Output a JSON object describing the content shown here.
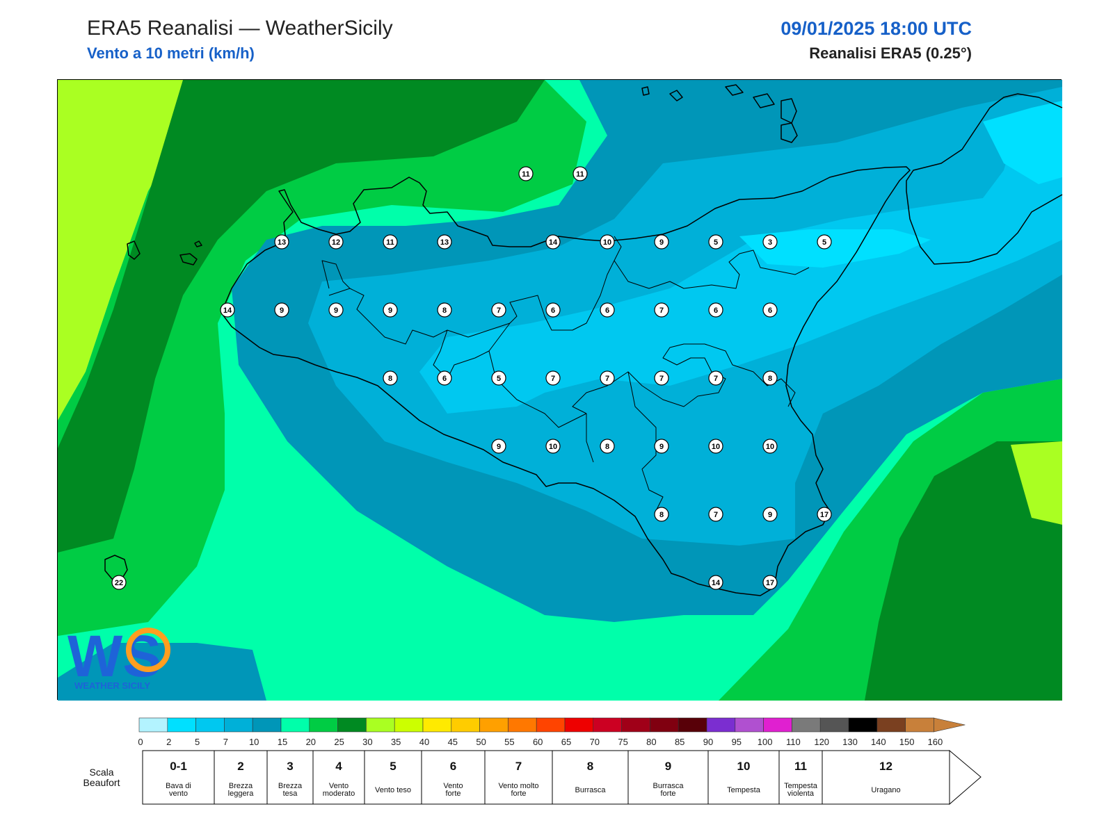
{
  "header": {
    "title": "ERA5 Reanalisi — WeatherSicily",
    "subtitle": "Vento a 10 metri (km/h)",
    "datetime": "09/01/2025 18:00 UTC",
    "source": "Reanalisi ERA5 (0.25°)"
  },
  "logo": {
    "text": "WEATHER SICILY",
    "letters": "WS"
  },
  "wind_labels": [
    {
      "value": "11",
      "lat": 38.5,
      "lon": 14.75
    },
    {
      "value": "11",
      "lat": 38.5,
      "lon": 15.25
    },
    {
      "value": "13",
      "lat": 38.0,
      "lon": 12.5
    },
    {
      "value": "12",
      "lat": 38.0,
      "lon": 13.0
    },
    {
      "value": "11",
      "lat": 38.0,
      "lon": 13.5
    },
    {
      "value": "13",
      "lat": 38.0,
      "lon": 14.0
    },
    {
      "value": "14",
      "lat": 38.0,
      "lon": 15.0
    },
    {
      "value": "10",
      "lat": 38.0,
      "lon": 15.5
    },
    {
      "value": "9",
      "lat": 38.0,
      "lon": 16.0
    },
    {
      "value": "5",
      "lat": 38.0,
      "lon": 16.5
    },
    {
      "value": "3",
      "lat": 38.0,
      "lon": 17.0
    },
    {
      "value": "5",
      "lat": 38.0,
      "lon": 17.5
    },
    {
      "value": "14",
      "lat": 37.5,
      "lon": 12.0
    },
    {
      "value": "9",
      "lat": 37.5,
      "lon": 12.5
    },
    {
      "value": "9",
      "lat": 37.5,
      "lon": 13.0
    },
    {
      "value": "9",
      "lat": 37.5,
      "lon": 13.5
    },
    {
      "value": "8",
      "lat": 37.5,
      "lon": 14.0
    },
    {
      "value": "7",
      "lat": 37.5,
      "lon": 14.5
    },
    {
      "value": "6",
      "lat": 37.5,
      "lon": 15.0
    },
    {
      "value": "6",
      "lat": 37.5,
      "lon": 15.5
    },
    {
      "value": "7",
      "lat": 37.5,
      "lon": 16.0
    },
    {
      "value": "6",
      "lat": 37.5,
      "lon": 16.5
    },
    {
      "value": "6",
      "lat": 37.5,
      "lon": 17.0
    },
    {
      "value": "8",
      "lat": 37.0,
      "lon": 13.5
    },
    {
      "value": "6",
      "lat": 37.0,
      "lon": 14.0
    },
    {
      "value": "5",
      "lat": 37.0,
      "lon": 14.5
    },
    {
      "value": "7",
      "lat": 37.0,
      "lon": 15.0
    },
    {
      "value": "7",
      "lat": 37.0,
      "lon": 15.5
    },
    {
      "value": "7",
      "lat": 37.0,
      "lon": 16.0
    },
    {
      "value": "7",
      "lat": 37.0,
      "lon": 16.5
    },
    {
      "value": "8",
      "lat": 37.0,
      "lon": 17.0
    },
    {
      "value": "9",
      "lat": 36.5,
      "lon": 14.5
    },
    {
      "value": "10",
      "lat": 36.5,
      "lon": 15.0
    },
    {
      "value": "8",
      "lat": 36.5,
      "lon": 15.5
    },
    {
      "value": "9",
      "lat": 36.5,
      "lon": 16.0
    },
    {
      "value": "10",
      "lat": 36.5,
      "lon": 16.5
    },
    {
      "value": "10",
      "lat": 36.5,
      "lon": 17.0
    },
    {
      "value": "8",
      "lat": 36.0,
      "lon": 16.0
    },
    {
      "value": "7",
      "lat": 36.0,
      "lon": 16.5
    },
    {
      "value": "9",
      "lat": 36.0,
      "lon": 17.0
    },
    {
      "value": "17",
      "lat": 36.0,
      "lon": 17.5
    },
    {
      "value": "14",
      "lat": 35.5,
      "lon": 16.5
    },
    {
      "value": "17",
      "lat": 35.5,
      "lon": 17.0
    },
    {
      "value": "22",
      "lat": 35.5,
      "lon": 11.0
    }
  ],
  "legend": {
    "ticks": [
      "0",
      "2",
      "5",
      "7",
      "10",
      "15",
      "20",
      "25",
      "30",
      "35",
      "40",
      "45",
      "50",
      "55",
      "60",
      "65",
      "70",
      "75",
      "80",
      "85",
      "90",
      "95",
      "100",
      "110",
      "120",
      "130",
      "140",
      "150",
      "160"
    ],
    "colors": [
      "#b3f3ff",
      "#00e0ff",
      "#00c8f0",
      "#00b0d8",
      "#0096b8",
      "#00ffaa",
      "#00cc44",
      "#008a22",
      "#aaff22",
      "#ccff00",
      "#ffea00",
      "#ffcc00",
      "#ffa000",
      "#ff7800",
      "#ff4400",
      "#ee0000",
      "#cc0022",
      "#a00018",
      "#800010",
      "#580008",
      "#7b2ed0",
      "#b050d0",
      "#e020d0",
      "#7a7a7a",
      "#555555",
      "#000000",
      "#7a4020",
      "#c8803a"
    ],
    "arrow_color": "#c8803a"
  },
  "beaufort": {
    "heading_line1": "Scala",
    "heading_line2": "Beaufort",
    "scale": [
      {
        "num": "0-1",
        "desc1": "Bava di",
        "desc2": "vento"
      },
      {
        "num": "2",
        "desc1": "Brezza",
        "desc2": "leggera"
      },
      {
        "num": "3",
        "desc1": "Brezza",
        "desc2": "tesa"
      },
      {
        "num": "4",
        "desc1": "Vento",
        "desc2": "moderato"
      },
      {
        "num": "5",
        "desc1": "Vento teso",
        "desc2": ""
      },
      {
        "num": "6",
        "desc1": "Vento",
        "desc2": "forte"
      },
      {
        "num": "7",
        "desc1": "Vento molto",
        "desc2": "forte"
      },
      {
        "num": "8",
        "desc1": "Burrasca",
        "desc2": ""
      },
      {
        "num": "9",
        "desc1": "Burrasca",
        "desc2": "forte"
      },
      {
        "num": "10",
        "desc1": "Tempesta",
        "desc2": ""
      },
      {
        "num": "11",
        "desc1": "Tempesta",
        "desc2": "violenta"
      },
      {
        "num": "12",
        "desc1": "Uragano",
        "desc2": ""
      }
    ]
  }
}
